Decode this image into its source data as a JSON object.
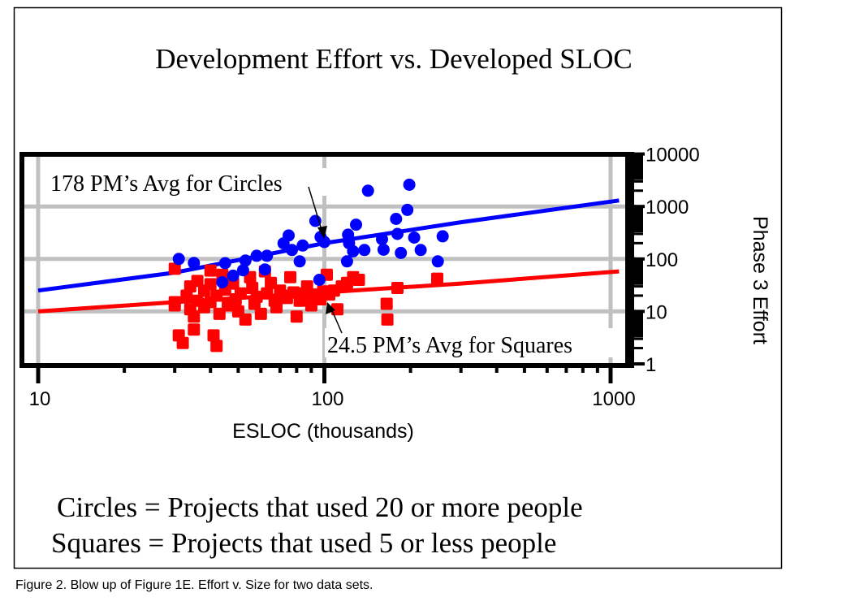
{
  "figure": {
    "caption": "Figure 2.  Blow up of Figure 1E.  Effort v. Size for two data sets.",
    "legend_lines": [
      "Circles = Projects that used 20 or more people",
      "Squares = Projects that used 5 or less people"
    ]
  },
  "colors": {
    "circles": "#0000ff",
    "squares": "#ff0000",
    "grid": "#c0c0c0",
    "axis": "#000000"
  },
  "chart_data": {
    "type": "scatter",
    "title": "Development Effort vs. Developed SLOC",
    "xlabel": "ESLOC (thousands)",
    "ylabel": "Phase 3 Effort",
    "xscale": "log",
    "yscale": "log",
    "xlim": [
      10,
      1000
    ],
    "ylim": [
      1,
      10000
    ],
    "x_ticks": [
      "10",
      "100",
      "1000"
    ],
    "x_tick_values": [
      10,
      100,
      1000
    ],
    "y_ticks": [
      "1",
      "10",
      "100",
      "1000",
      "10000"
    ],
    "y_tick_values": [
      1,
      10,
      100,
      1000,
      10000
    ],
    "y_axis_side": "right",
    "grid": true,
    "annotations": [
      {
        "text": "178 PM’s Avg for Circles",
        "points_to": [
          100,
          200
        ]
      },
      {
        "text": "24.5 PM’s Avg for Squares",
        "points_to": [
          100,
          23
        ]
      }
    ],
    "series": [
      {
        "name": "Circles",
        "marker": "circle",
        "points": [
          [
            31,
            100
          ],
          [
            35,
            84
          ],
          [
            44,
            36
          ],
          [
            45,
            83
          ],
          [
            48,
            48
          ],
          [
            52,
            61
          ],
          [
            53,
            93
          ],
          [
            58,
            115
          ],
          [
            62,
            63
          ],
          [
            63,
            115
          ],
          [
            72,
            198
          ],
          [
            75,
            280
          ],
          [
            77,
            148
          ],
          [
            82,
            90
          ],
          [
            84,
            180
          ],
          [
            93,
            530
          ],
          [
            96,
            40
          ],
          [
            97,
            262
          ],
          [
            100,
            211
          ],
          [
            120,
            90
          ],
          [
            121,
            290
          ],
          [
            122,
            200
          ],
          [
            126,
            140
          ],
          [
            129,
            450
          ],
          [
            138,
            148
          ],
          [
            142,
            2000
          ],
          [
            159,
            238
          ],
          [
            161,
            150
          ],
          [
            178,
            580
          ],
          [
            180,
            300
          ],
          [
            185,
            130
          ],
          [
            195,
            860
          ],
          [
            198,
            2600
          ],
          [
            206,
            255
          ],
          [
            217,
            148
          ],
          [
            249,
            90
          ],
          [
            259,
            270
          ]
        ]
      },
      {
        "name": "Squares",
        "marker": "square",
        "points": [
          [
            30,
            65
          ],
          [
            30,
            15
          ],
          [
            30,
            13
          ],
          [
            31,
            3.5
          ],
          [
            32,
            2.5
          ],
          [
            33,
            20
          ],
          [
            34,
            30
          ],
          [
            34,
            11
          ],
          [
            35,
            8
          ],
          [
            35,
            4.5
          ],
          [
            36,
            38
          ],
          [
            36,
            16
          ],
          [
            38,
            25
          ],
          [
            38,
            12
          ],
          [
            40,
            60
          ],
          [
            40,
            33
          ],
          [
            40,
            15
          ],
          [
            41,
            3.5
          ],
          [
            42,
            2.2
          ],
          [
            42,
            20
          ],
          [
            43,
            9
          ],
          [
            44,
            50
          ],
          [
            45,
            26
          ],
          [
            46,
            13
          ],
          [
            48,
            34
          ],
          [
            49,
            17
          ],
          [
            50,
            10
          ],
          [
            51,
            22
          ],
          [
            53,
            7
          ],
          [
            55,
            45
          ],
          [
            56,
            28
          ],
          [
            57,
            14
          ],
          [
            58,
            19
          ],
          [
            60,
            9
          ],
          [
            62,
            58
          ],
          [
            63,
            22
          ],
          [
            65,
            35
          ],
          [
            67,
            16
          ],
          [
            68,
            12
          ],
          [
            70,
            25
          ],
          [
            72,
            20
          ],
          [
            74,
            18
          ],
          [
            76,
            45
          ],
          [
            78,
            23
          ],
          [
            80,
            8
          ],
          [
            82,
            16
          ],
          [
            85,
            22
          ],
          [
            87,
            30
          ],
          [
            90,
            13
          ],
          [
            93,
            21
          ],
          [
            97,
            17
          ],
          [
            99,
            24
          ],
          [
            102,
            50
          ],
          [
            104,
            21
          ],
          [
            108,
            25
          ],
          [
            111,
            11
          ],
          [
            115,
            30
          ],
          [
            120,
            35
          ],
          [
            126,
            45
          ],
          [
            132,
            40
          ],
          [
            165,
            14
          ],
          [
            166,
            7
          ],
          [
            180,
            28
          ],
          [
            248,
            42
          ]
        ]
      }
    ],
    "trend_lines": [
      {
        "name": "Circles trend",
        "points": [
          [
            10,
            25
          ],
          [
            30,
            55
          ],
          [
            100,
            200
          ],
          [
            300,
            500
          ],
          [
            1070,
            1300
          ]
        ]
      },
      {
        "name": "Squares trend",
        "points": [
          [
            10,
            10
          ],
          [
            30,
            15
          ],
          [
            100,
            23
          ],
          [
            300,
            34
          ],
          [
            1070,
            58
          ]
        ]
      }
    ]
  }
}
